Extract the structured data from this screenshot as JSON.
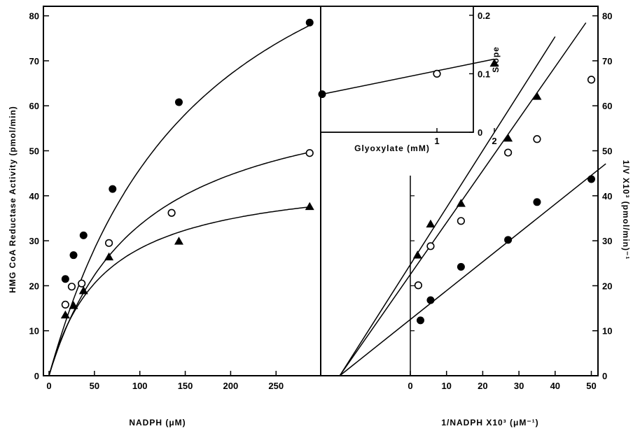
{
  "chart_data": [
    {
      "type": "line",
      "panel": "left",
      "xlabel": "NADPH (μM)",
      "ylabel": "HMG CoA Reductase Activity (pmol/min)",
      "xlim": [
        0,
        290
      ],
      "ylim": [
        0,
        80
      ],
      "x_ticks": [
        "0",
        "50",
        "100",
        "150",
        "200",
        "250"
      ],
      "y_ticks": [
        "0",
        "10",
        "20",
        "30",
        "40",
        "50",
        "60",
        "70",
        "80"
      ],
      "series": [
        {
          "marker": "filled-circle",
          "x": [
            18,
            27,
            38,
            70,
            143,
            287
          ],
          "y": [
            21.5,
            26.8,
            31.2,
            41.5,
            60.8,
            78.5
          ]
        },
        {
          "marker": "open-circle",
          "x": [
            18,
            25,
            36,
            66,
            135,
            287
          ],
          "y": [
            15.8,
            19.8,
            20.5,
            29.5,
            36.2,
            49.5
          ]
        },
        {
          "marker": "filled-triangle",
          "x": [
            18,
            27,
            38,
            66,
            143,
            287
          ],
          "y": [
            13.5,
            15.6,
            18.9,
            26.4,
            29.9,
            37.6
          ]
        }
      ]
    },
    {
      "type": "line",
      "panel": "right",
      "xlabel": "1/NADPH X10³ (μM⁻¹)",
      "ylabel": "1/V X10³ (pmol/min)⁻¹",
      "xlim": [
        -20,
        52
      ],
      "ylim": [
        0,
        80
      ],
      "x_ticks": [
        "0",
        "10",
        "20",
        "30",
        "40",
        "50"
      ],
      "y_ticks": [
        "0",
        "10",
        "20",
        "30",
        "40",
        "50",
        "60",
        "70",
        "80"
      ],
      "series": [
        {
          "marker": "filled-circle",
          "x": [
            2.8,
            5.6,
            14,
            27,
            35,
            50
          ],
          "y": [
            12.3,
            16.8,
            24.2,
            30.2,
            38.6,
            43.7
          ]
        },
        {
          "marker": "open-circle",
          "x": [
            2.2,
            5.6,
            14,
            27,
            35,
            50
          ],
          "y": [
            20.1,
            28.8,
            34.4,
            49.6,
            52.6,
            65.8
          ]
        },
        {
          "marker": "filled-triangle",
          "x": [
            2,
            5.6,
            14,
            27,
            35
          ],
          "y": [
            26.8,
            33.7,
            38.3,
            52.8,
            62.1
          ]
        }
      ]
    },
    {
      "type": "scatter",
      "panel": "inset",
      "xlabel": "Glyoxylate (mM)",
      "ylabel": "Slope",
      "xlim": [
        -1,
        2.3
      ],
      "ylim": [
        0,
        0.2
      ],
      "x_ticks": [
        "1",
        "2"
      ],
      "y_ticks": [
        "0",
        "0.1",
        "0.2"
      ],
      "series": [
        {
          "marker": "filled-circle",
          "x": [
            -1
          ],
          "y": [
            0.065
          ]
        },
        {
          "marker": "open-circle",
          "x": [
            1
          ],
          "y": [
            0.1
          ]
        },
        {
          "marker": "filled-triangle",
          "x": [
            2
          ],
          "y": [
            0.118
          ]
        }
      ]
    }
  ]
}
